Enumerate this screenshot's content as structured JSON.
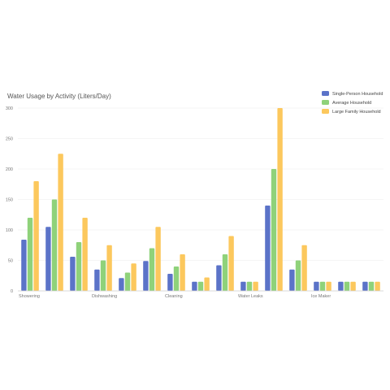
{
  "chart_data": {
    "type": "bar",
    "title": "Water Usage by Activity (Liters/Day)",
    "xlabel": "",
    "ylabel": "",
    "ylim": [
      0,
      300
    ],
    "yticks": [
      0,
      50,
      100,
      150,
      200,
      250,
      300
    ],
    "grid": true,
    "legend_position": "top-right",
    "categories": [
      "Showering",
      "",
      "",
      "Dishwashing",
      "",
      "",
      "Cleaning",
      "",
      "",
      "Water Leaks",
      "",
      "",
      "Ice Maker",
      "",
      ""
    ],
    "series": [
      {
        "name": "Single-Person Household",
        "color": "#5b73c8",
        "values": [
          84,
          105,
          56,
          35,
          21,
          49,
          28,
          15,
          42,
          15,
          140,
          35,
          15,
          15,
          15
        ]
      },
      {
        "name": "Average Household",
        "color": "#8fd27a",
        "values": [
          120,
          150,
          80,
          50,
          30,
          70,
          40,
          15,
          60,
          15,
          200,
          50,
          15,
          15,
          15
        ]
      },
      {
        "name": "Large Family Household",
        "color": "#fcc85d",
        "values": [
          180,
          225,
          120,
          75,
          45,
          105,
          60,
          22,
          90,
          15,
          300,
          75,
          15,
          15,
          15
        ]
      }
    ]
  }
}
